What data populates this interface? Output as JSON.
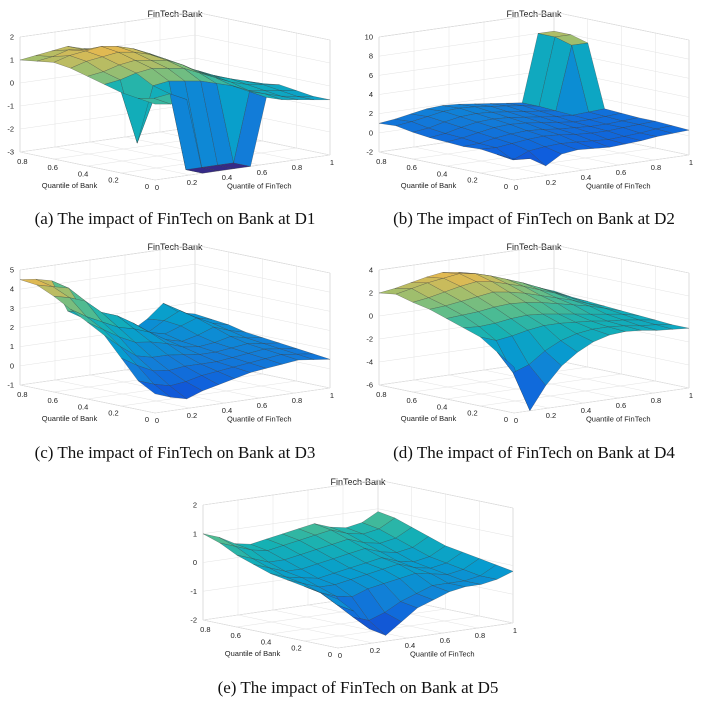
{
  "chart_data": [
    {
      "id": "a",
      "type": "surface",
      "title": "FinTech-Bank",
      "xlabel": "Quantile of FinTech",
      "ylabel": "Quantile of Bank",
      "zlim": [
        -3,
        2
      ],
      "zticks": [
        "-3",
        "-2",
        "-1",
        "0",
        "1",
        "2"
      ],
      "xticks": [
        "0",
        "0.2",
        "0.4",
        "0.6",
        "0.8",
        "1"
      ],
      "yticks": [
        "0",
        "0.2",
        "0.4",
        "0.6",
        "0.8"
      ],
      "caption": "(a) The impact of FinTech on Bank at D1",
      "grid_rows": [
        [
          1.0,
          1.1,
          1.2,
          1.3,
          1.1,
          1.0,
          0.6,
          0.2,
          -0.1,
          -0.3,
          -0.5,
          -0.6
        ],
        [
          1.1,
          1.2,
          1.4,
          1.3,
          1.2,
          1.1,
          0.8,
          0.4,
          0.0,
          -0.3,
          -0.6,
          -0.7
        ],
        [
          1.2,
          1.4,
          1.5,
          1.6,
          1.5,
          1.3,
          1.0,
          0.6,
          0.1,
          -0.2,
          -0.5,
          -0.7
        ],
        [
          1.1,
          1.3,
          1.4,
          1.5,
          1.4,
          1.2,
          0.9,
          0.5,
          0.2,
          -0.1,
          -0.4,
          -0.6
        ],
        [
          0.9,
          1.0,
          1.2,
          1.3,
          1.2,
          1.1,
          0.8,
          0.4,
          0.1,
          -0.1,
          -0.3,
          -0.5
        ],
        [
          0.7,
          0.8,
          1.0,
          1.1,
          1.0,
          0.9,
          0.6,
          0.3,
          0.0,
          -0.2,
          -0.3,
          -0.4
        ],
        [
          0.5,
          -1.8,
          0.6,
          0.7,
          0.6,
          0.5,
          0.3,
          0.1,
          -0.2,
          -0.3,
          -0.4,
          -0.5
        ],
        [
          0.4,
          0.3,
          0.4,
          -3.0,
          -3.0,
          -3.0,
          -3.0,
          0.0,
          -0.2,
          -0.4,
          -0.5,
          -0.6
        ],
        [
          0.3,
          0.2,
          0.3,
          -3.0,
          -3.0,
          -3.0,
          -3.0,
          -0.1,
          -0.3,
          -0.4,
          -0.5,
          -0.6
        ]
      ]
    },
    {
      "id": "b",
      "type": "surface",
      "title": "FinTech-Bank",
      "xlabel": "Quantile of FinTech",
      "ylabel": "Quantile of Bank",
      "zlim": [
        -2,
        10
      ],
      "zticks": [
        "-2",
        "0",
        "2",
        "4",
        "6",
        "8",
        "10"
      ],
      "xticks": [
        "0",
        "0.2",
        "0.4",
        "0.6",
        "0.8",
        "1"
      ],
      "yticks": [
        "0",
        "0.2",
        "0.4",
        "0.6",
        "0.8"
      ],
      "caption": "(b) The impact of FinTech on Bank at D2",
      "grid_rows": [
        [
          1.0,
          1.2,
          1.5,
          1.8,
          1.9,
          1.8,
          1.6,
          1.4,
          1.2,
          1.0,
          8.0,
          8.0
        ],
        [
          1.1,
          1.3,
          1.6,
          1.9,
          2.0,
          1.9,
          1.7,
          1.5,
          1.3,
          1.0,
          8.0,
          8.0
        ],
        [
          0.8,
          1.0,
          1.4,
          1.7,
          1.8,
          1.7,
          1.5,
          1.3,
          1.1,
          0.9,
          7.5,
          7.5
        ],
        [
          0.6,
          0.8,
          1.2,
          1.5,
          1.6,
          1.5,
          1.3,
          1.1,
          0.9,
          0.8,
          0.9,
          1.0
        ],
        [
          0.5,
          0.7,
          1.0,
          1.3,
          1.4,
          1.3,
          1.1,
          0.9,
          0.7,
          0.7,
          0.8,
          0.9
        ],
        [
          0.4,
          0.5,
          0.8,
          1.0,
          1.1,
          1.0,
          0.8,
          0.7,
          0.6,
          0.6,
          0.7,
          0.8
        ],
        [
          0.5,
          0.4,
          0.6,
          0.8,
          0.9,
          0.8,
          0.6,
          0.5,
          0.5,
          0.6,
          0.7,
          0.8
        ],
        [
          0.3,
          -0.5,
          0.2,
          0.4,
          0.5,
          0.4,
          0.3,
          0.2,
          0.3,
          0.4,
          0.6,
          0.7
        ],
        [
          0.2,
          0.0,
          -1.0,
          0.0,
          0.2,
          0.1,
          0.0,
          0.1,
          0.2,
          0.4,
          0.5,
          0.6
        ]
      ]
    },
    {
      "id": "c",
      "type": "surface",
      "title": "FinTech-Bank",
      "xlabel": "Quantile of FinTech",
      "ylabel": "Quantile of Bank",
      "zlim": [
        -1,
        5
      ],
      "zticks": [
        "-1",
        "0",
        "1",
        "2",
        "3",
        "4",
        "5"
      ],
      "xticks": [
        "0",
        "0.2",
        "0.4",
        "0.6",
        "0.8",
        "1"
      ],
      "yticks": [
        "0",
        "0.2",
        "0.4",
        "0.6",
        "0.8"
      ],
      "caption": "(c) The impact of FinTech on Bank at D3",
      "grid_rows": [
        [
          4.5,
          4.4,
          4.2,
          2.5,
          2.0,
          1.8,
          1.2,
          1.0,
          1.5,
          2.2,
          1.6,
          1.4
        ],
        [
          4.4,
          4.2,
          4.0,
          2.6,
          2.2,
          1.9,
          1.3,
          1.1,
          1.6,
          2.0,
          1.5,
          1.3
        ],
        [
          4.0,
          3.8,
          3.5,
          2.8,
          2.5,
          2.0,
          1.4,
          1.2,
          1.5,
          1.8,
          1.4,
          1.2
        ],
        [
          3.5,
          3.0,
          2.6,
          2.2,
          2.0,
          1.7,
          1.2,
          1.0,
          1.2,
          1.5,
          1.2,
          1.0
        ],
        [
          3.0,
          2.5,
          2.0,
          1.6,
          1.5,
          1.3,
          1.0,
          0.9,
          1.0,
          1.2,
          1.0,
          0.9
        ],
        [
          2.5,
          1.8,
          1.2,
          1.0,
          1.0,
          0.9,
          0.8,
          0.8,
          0.9,
          1.0,
          0.9,
          0.8
        ],
        [
          1.5,
          1.0,
          0.6,
          0.5,
          0.6,
          0.6,
          0.6,
          0.7,
          0.8,
          0.9,
          0.8,
          0.7
        ],
        [
          0.5,
          0.2,
          0.0,
          0.1,
          0.3,
          0.4,
          0.5,
          0.6,
          0.7,
          0.8,
          0.7,
          0.6
        ],
        [
          0.0,
          -0.3,
          -0.5,
          -0.2,
          0.0,
          0.2,
          0.4,
          0.5,
          0.6,
          0.7,
          0.6,
          0.5
        ]
      ]
    },
    {
      "id": "d",
      "type": "surface",
      "title": "FinTech-Bank",
      "xlabel": "Quantile of FinTech",
      "ylabel": "Quantile of Bank",
      "zlim": [
        -6,
        4
      ],
      "zticks": [
        "-6",
        "-4",
        "-2",
        "0",
        "2",
        "4"
      ],
      "xticks": [
        "0",
        "0.2",
        "0.4",
        "0.6",
        "0.8",
        "1"
      ],
      "yticks": [
        "0",
        "0.2",
        "0.4",
        "0.6",
        "0.8"
      ],
      "caption": "(d) The impact of FinTech on Bank at D4",
      "grid_rows": [
        [
          2.0,
          2.2,
          2.5,
          2.8,
          3.0,
          2.8,
          2.5,
          2.0,
          1.5,
          1.0,
          0.5,
          0.0
        ],
        [
          2.2,
          2.5,
          2.8,
          3.0,
          3.2,
          3.0,
          2.6,
          2.1,
          1.6,
          1.0,
          0.4,
          -0.2
        ],
        [
          1.8,
          2.0,
          2.3,
          2.6,
          2.8,
          2.6,
          2.2,
          1.8,
          1.3,
          0.8,
          0.2,
          -0.3
        ],
        [
          1.5,
          1.6,
          1.8,
          2.0,
          2.2,
          2.0,
          1.7,
          1.3,
          0.9,
          0.5,
          0.0,
          -0.4
        ],
        [
          1.0,
          1.1,
          1.2,
          1.4,
          1.5,
          1.4,
          1.2,
          0.9,
          0.6,
          0.3,
          -0.1,
          -0.5
        ],
        [
          0.5,
          0.4,
          0.5,
          0.7,
          0.8,
          0.7,
          0.5,
          0.3,
          0.1,
          -0.1,
          -0.3,
          -0.6
        ],
        [
          0.0,
          -0.5,
          -0.3,
          0.0,
          0.2,
          0.2,
          0.1,
          0.0,
          -0.2,
          -0.3,
          -0.5,
          -0.7
        ],
        [
          -1.0,
          -3.0,
          -2.5,
          -1.5,
          -0.8,
          -0.4,
          -0.2,
          -0.2,
          -0.3,
          -0.5,
          -0.6,
          -0.8
        ],
        [
          -2.0,
          -6.0,
          -4.0,
          -2.5,
          -1.5,
          -0.8,
          -0.4,
          -0.3,
          -0.4,
          -0.6,
          -0.7,
          -0.8
        ]
      ]
    },
    {
      "id": "e",
      "type": "surface",
      "title": "FinTech-Bank",
      "xlabel": "Quantile of FinTech",
      "ylabel": "Quantile of Bank",
      "zlim": [
        -2,
        2
      ],
      "zticks": [
        "-2",
        "-1",
        "0",
        "1",
        "2"
      ],
      "xticks": [
        "0",
        "0.2",
        "0.4",
        "0.6",
        "0.8",
        "1"
      ],
      "yticks": [
        "0",
        "0.2",
        "0.4",
        "0.6",
        "0.8"
      ],
      "caption": "(e) The impact of FinTech on Bank at D5",
      "grid_rows": [
        [
          1.0,
          0.8,
          0.5,
          0.4,
          0.5,
          0.6,
          0.7,
          0.8,
          0.6,
          0.5,
          0.6,
          0.9
        ],
        [
          0.8,
          0.6,
          0.4,
          0.3,
          0.4,
          0.5,
          0.6,
          0.7,
          0.5,
          0.4,
          0.5,
          0.8
        ],
        [
          0.5,
          0.3,
          0.1,
          0.1,
          0.2,
          0.3,
          0.4,
          0.5,
          0.3,
          0.2,
          0.3,
          0.6
        ],
        [
          0.3,
          0.1,
          -0.1,
          -0.1,
          0.0,
          0.1,
          0.2,
          0.3,
          0.1,
          0.0,
          0.1,
          0.4
        ],
        [
          0.1,
          -0.1,
          -0.2,
          -0.3,
          -0.2,
          -0.1,
          0.0,
          0.1,
          -0.1,
          -0.2,
          -0.1,
          0.2
        ],
        [
          0.0,
          -0.2,
          -0.4,
          -0.4,
          -0.3,
          -0.2,
          -0.1,
          0.0,
          -0.2,
          -0.3,
          -0.2,
          0.1
        ],
        [
          -0.1,
          -0.4,
          -0.6,
          -0.7,
          -0.5,
          -0.4,
          -0.3,
          -0.2,
          -0.3,
          -0.4,
          -0.3,
          0.0
        ],
        [
          -0.2,
          -0.7,
          -1.2,
          -1.4,
          -1.2,
          -0.9,
          -0.7,
          -0.5,
          -0.5,
          -0.5,
          -0.4,
          -0.1
        ],
        [
          -0.3,
          -0.8,
          -1.5,
          -1.8,
          -1.4,
          -1.0,
          -0.8,
          -0.6,
          -0.5,
          -0.5,
          -0.4,
          -0.2
        ]
      ]
    }
  ]
}
